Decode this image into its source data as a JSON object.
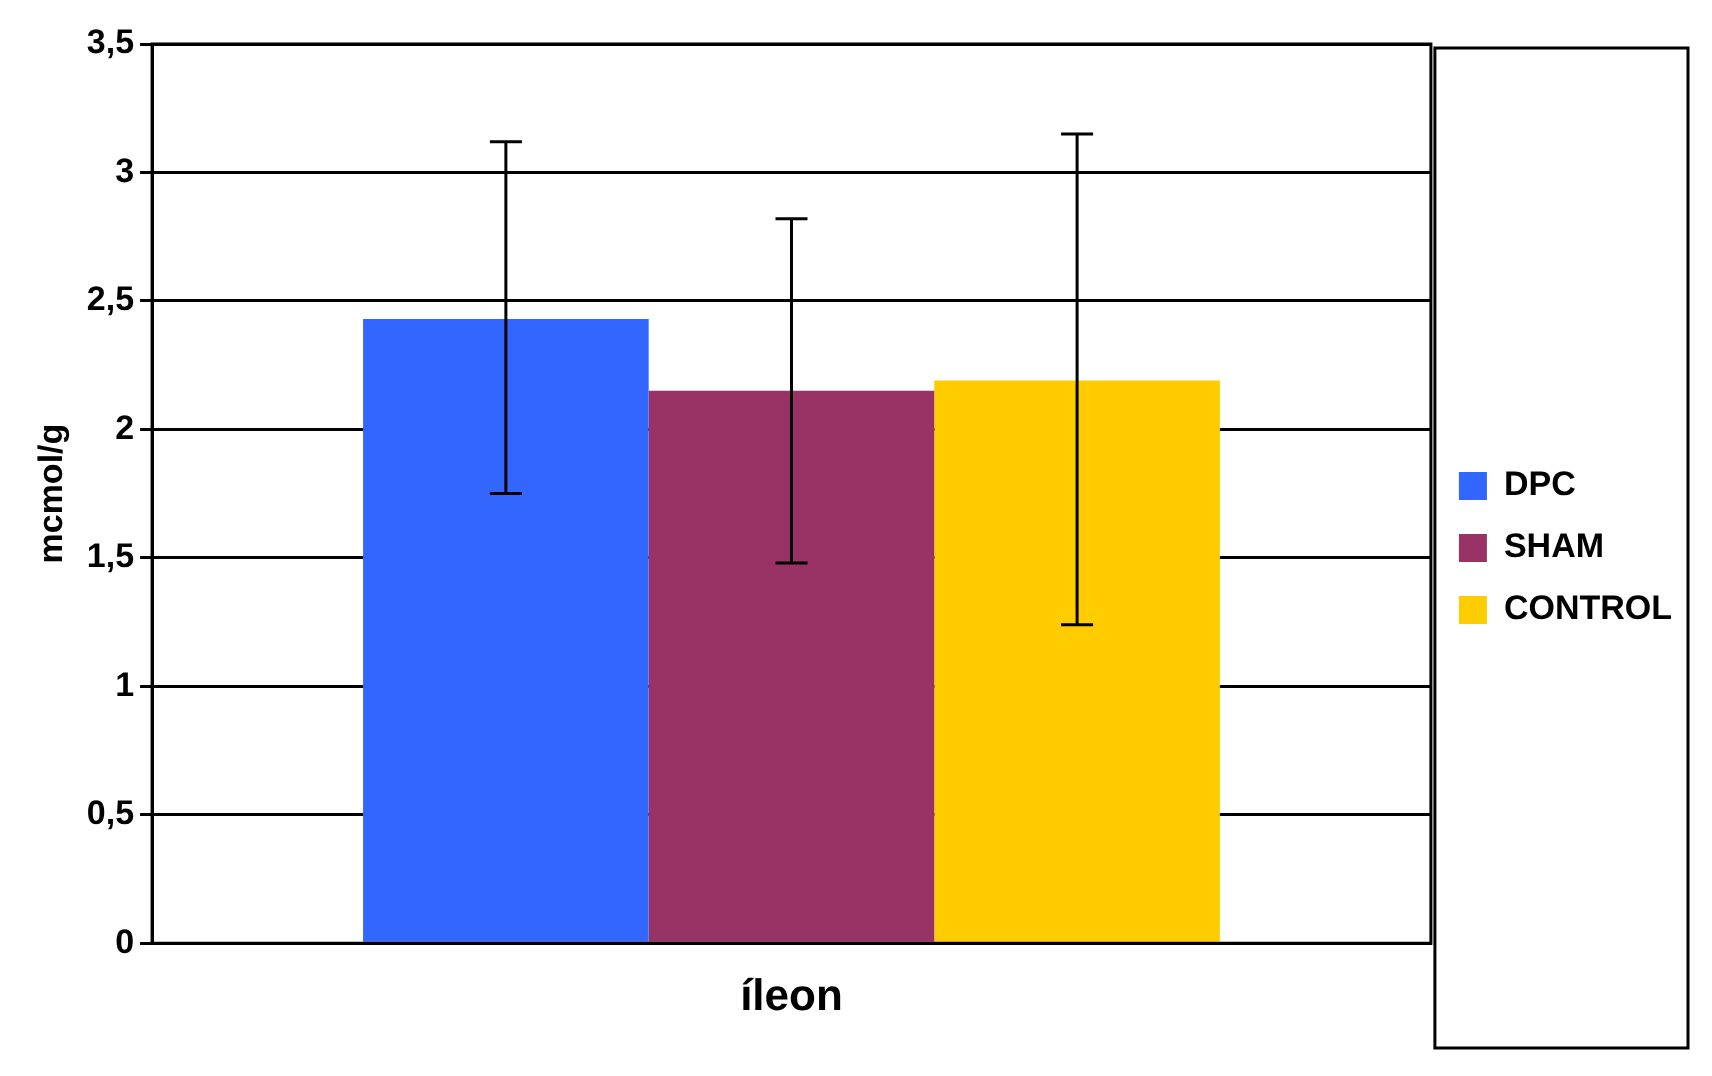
{
  "chart_data": {
    "type": "bar",
    "categories": [
      "íleon"
    ],
    "ylabel": "mcmol/g",
    "series": [
      {
        "name": "DPC",
        "color": "#3366ff",
        "values": [
          2.43
        ],
        "errors": [
          [
            1.75,
            3.12
          ]
        ]
      },
      {
        "name": "SHAM",
        "color": "#993366",
        "values": [
          2.15
        ],
        "errors": [
          [
            1.48,
            2.82
          ]
        ]
      },
      {
        "name": "CONTROL",
        "color": "#ffcc00",
        "values": [
          2.19
        ],
        "errors": [
          [
            1.24,
            3.15
          ]
        ]
      }
    ],
    "ylim": [
      0,
      3.5
    ],
    "yticks": [
      0,
      {
        "value": 0.5,
        "label": "0,5"
      },
      1,
      {
        "value": 1.5,
        "label": "1,5"
      },
      2,
      {
        "value": 2.5,
        "label": "2,5"
      },
      3,
      {
        "value": 3.5,
        "label": "3,5"
      }
    ],
    "grid": "y",
    "legend": "right"
  }
}
